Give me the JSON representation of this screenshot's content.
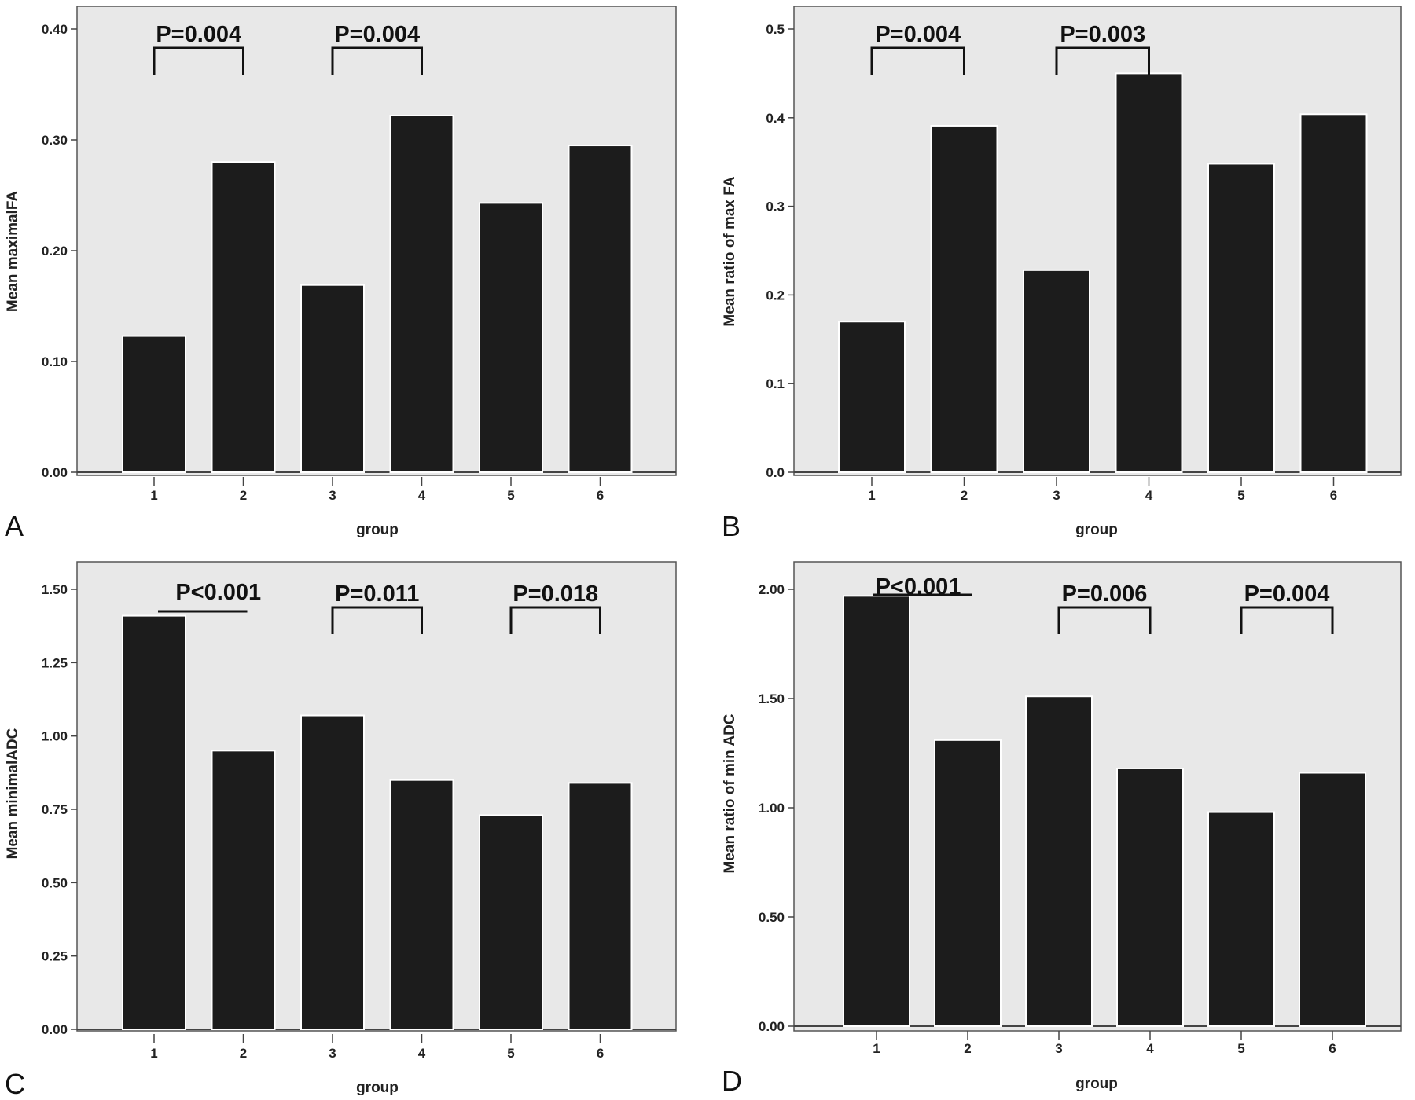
{
  "chart_data": [
    {
      "panel": "A",
      "type": "bar",
      "categories": [
        "1",
        "2",
        "3",
        "4",
        "5",
        "6"
      ],
      "values": [
        0.123,
        0.28,
        0.169,
        0.322,
        0.243,
        0.295
      ],
      "ylim": [
        0,
        0.42
      ],
      "yticks": [
        "0.00",
        "0.10",
        "0.20",
        "0.30",
        "0.40"
      ],
      "xlabel": "group",
      "ylabel": "Mean maximalFA",
      "grid": false,
      "annotations": [
        {
          "label": "P=0.004",
          "from": "1",
          "to": "2",
          "style": "bracket"
        },
        {
          "label": "P=0.004",
          "from": "3",
          "to": "4",
          "style": "bracket"
        }
      ]
    },
    {
      "panel": "B",
      "type": "bar",
      "categories": [
        "1",
        "2",
        "3",
        "4",
        "5",
        "6"
      ],
      "values": [
        0.17,
        0.391,
        0.228,
        0.45,
        0.348,
        0.404
      ],
      "ylim": [
        0,
        0.52
      ],
      "yticks": [
        "0.0",
        "0.1",
        "0.2",
        "0.3",
        "0.4",
        "0.5"
      ],
      "xlabel": "group",
      "ylabel": "Mean ratio of max FA",
      "grid": false,
      "annotations": [
        {
          "label": "P=0.004",
          "from": "1",
          "to": "2",
          "style": "bracket"
        },
        {
          "label": "P=0.003",
          "from": "3",
          "to": "4",
          "style": "bracket"
        }
      ]
    },
    {
      "panel": "C",
      "type": "bar",
      "categories": [
        "1",
        "2",
        "3",
        "4",
        "5",
        "6"
      ],
      "values": [
        1.41,
        0.95,
        1.07,
        0.85,
        0.73,
        0.84
      ],
      "ylim": [
        0,
        1.6
      ],
      "yticks": [
        "0.00",
        "0.25",
        "0.50",
        "0.75",
        "1.00",
        "1.25",
        "1.50"
      ],
      "xlabel": "group",
      "ylabel": "Mean minimalADC",
      "grid": false,
      "annotations": [
        {
          "label": "P<0.001",
          "from": "1",
          "to": "2",
          "style": "line"
        },
        {
          "label": "P=0.011",
          "from": "3",
          "to": "4",
          "style": "bracket"
        },
        {
          "label": "P=0.018",
          "from": "5",
          "to": "6",
          "style": "bracket"
        }
      ]
    },
    {
      "panel": "D",
      "type": "bar",
      "categories": [
        "1",
        "2",
        "3",
        "4",
        "5",
        "6"
      ],
      "values": [
        1.97,
        1.31,
        1.51,
        1.18,
        0.98,
        1.16
      ],
      "ylim": [
        0,
        2.1
      ],
      "yticks": [
        "0.00",
        "0.50",
        "1.00",
        "1.50",
        "2.00"
      ],
      "xlabel": "group",
      "ylabel": "Mean ratio of min ADC",
      "grid": false,
      "annotations": [
        {
          "label": "P<0.001",
          "from": "1",
          "to": "2",
          "style": "line"
        },
        {
          "label": "P=0.006",
          "from": "3",
          "to": "4",
          "style": "bracket"
        },
        {
          "label": "P=0.004",
          "from": "5",
          "to": "6",
          "style": "bracket"
        }
      ]
    }
  ],
  "colors": {
    "bar": "#1c1c1c",
    "plot_background": "#e8e8e8",
    "page_background": "#ffffff",
    "text": "#222222"
  }
}
